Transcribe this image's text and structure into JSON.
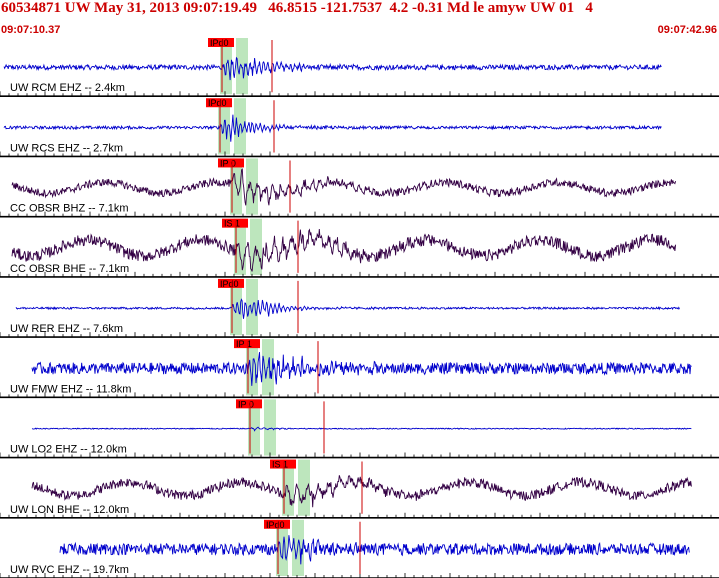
{
  "header": {
    "title": "60534871 UW May 31, 2013 09:07:19.49   46.8515 -121.7537  4.2 -0.31 Md le amyw UW 01   4",
    "start_time": "09:07:10.37",
    "end_time": "09:07:42.96"
  },
  "colors": {
    "header_text": "#cc0000",
    "trace_blue": "#0000cc",
    "trace_purple": "#330044",
    "pick_box": "#ff0000",
    "pick_line": "#cc0000",
    "band_green": "#bde6bd",
    "divider": "#000000"
  },
  "chart_data": {
    "type": "seismogram",
    "time_range": [
      "09:07:10.37",
      "09:07:42.96"
    ],
    "grid": "vertical minor ticks along each trace divider",
    "traces": [
      {
        "label": "UW RCM EHZ -- 2.4km",
        "pick": "IPd0",
        "color": "blue",
        "amp": 0.35,
        "noise": 0.05,
        "onset_px": 222,
        "decay": 40,
        "freq": 1.4
      },
      {
        "label": "UW RCS EHZ -- 2.7km",
        "pick": "IPd0",
        "color": "blue",
        "amp": 0.35,
        "noise": 0.03,
        "onset_px": 220,
        "decay": 30,
        "freq": 1.6
      },
      {
        "label": "CC OBSR BHZ -- 7.1km",
        "pick": "IP 0",
        "color": "purple",
        "amp": 0.35,
        "noise": 0.08,
        "onset_px": 232,
        "decay": 60,
        "freq": 0.8
      },
      {
        "label": "CC OBSR BHE -- 7.1km",
        "pick": "IS 1",
        "color": "purple",
        "amp": 0.4,
        "noise": 0.12,
        "onset_px": 236,
        "decay": 70,
        "freq": 0.7
      },
      {
        "label": "UW RER EHZ -- 7.6km",
        "pick": "IPd0",
        "color": "blue",
        "amp": 0.4,
        "noise": 0.02,
        "onset_px": 232,
        "decay": 35,
        "freq": 1.5
      },
      {
        "label": "UW FMW EHZ -- 11.8km",
        "pick": "IP 1",
        "color": "blue",
        "amp": 0.4,
        "noise": 0.12,
        "onset_px": 248,
        "decay": 55,
        "freq": 1.3
      },
      {
        "label": "UW LO2 EHZ -- 12.0km",
        "pick": "IP 0",
        "color": "blue",
        "amp": 0.05,
        "noise": 0.01,
        "onset_px": 250,
        "decay": 20,
        "freq": 1.0
      },
      {
        "label": "UW LON BHE -- 12.0km",
        "pick": "IS 1",
        "color": "purple",
        "amp": 0.3,
        "noise": 0.1,
        "onset_px": 284,
        "decay": 60,
        "freq": 0.6
      },
      {
        "label": "UW RVC EHZ -- 19.7km",
        "pick": "IPd0",
        "color": "blue",
        "amp": 0.35,
        "noise": 0.12,
        "onset_px": 278,
        "decay": 45,
        "freq": 1.3
      }
    ]
  }
}
